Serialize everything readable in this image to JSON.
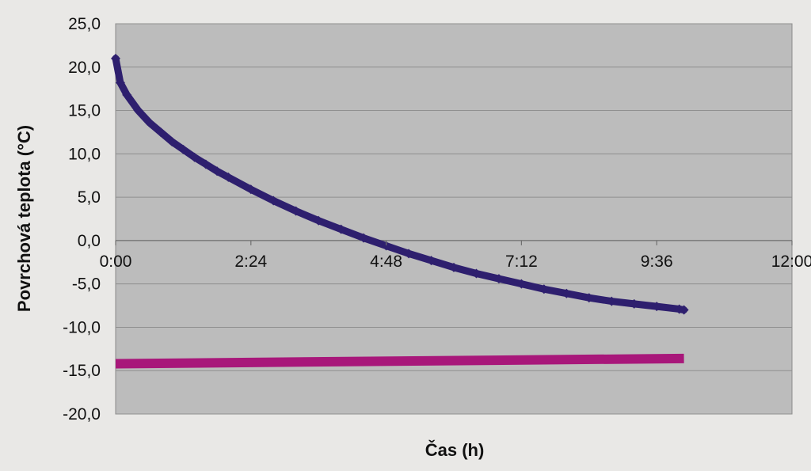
{
  "chart_data": {
    "type": "line",
    "title": "",
    "xlabel": "Čas (h)",
    "ylabel": "Povrchová teplota (°C)",
    "xlim": [
      "0:00",
      "12:00"
    ],
    "ylim": [
      -20,
      25
    ],
    "grid": true,
    "legend": "none",
    "x_ticks": [
      "0:00",
      "2:24",
      "4:48",
      "7:12",
      "9:36",
      "12:00"
    ],
    "y_ticks": [
      "25,0",
      "20,0",
      "15,0",
      "10,0",
      "5,0",
      "0,0",
      "-5,0",
      "-10,0",
      "-15,0",
      "-20,0"
    ],
    "series": [
      {
        "color": "#2e1f6e",
        "marker": "diamond",
        "x": [
          "0:00",
          "0:05",
          "0:12",
          "0:24",
          "0:36",
          "0:48",
          "1:00",
          "1:12",
          "1:24",
          "1:36",
          "1:48",
          "2:00",
          "2:24",
          "2:48",
          "3:12",
          "3:36",
          "4:00",
          "4:24",
          "4:48",
          "5:12",
          "5:36",
          "6:00",
          "6:24",
          "6:48",
          "7:12",
          "7:36",
          "8:00",
          "8:24",
          "8:48",
          "9:12",
          "9:36",
          "10:00",
          "10:05"
        ],
        "values": [
          21.0,
          18.2,
          16.8,
          15.0,
          13.6,
          12.5,
          11.4,
          10.5,
          9.6,
          8.8,
          8.0,
          7.3,
          5.9,
          4.6,
          3.4,
          2.3,
          1.3,
          0.3,
          -0.6,
          -1.5,
          -2.3,
          -3.1,
          -3.8,
          -4.4,
          -5.0,
          -5.6,
          -6.1,
          -6.6,
          -7.0,
          -7.3,
          -7.6,
          -7.9,
          -8.0
        ]
      },
      {
        "color": "#a8177a",
        "marker": "none",
        "x": [
          "0:00",
          "10:05"
        ],
        "values": [
          -14.2,
          -13.6
        ]
      }
    ]
  }
}
